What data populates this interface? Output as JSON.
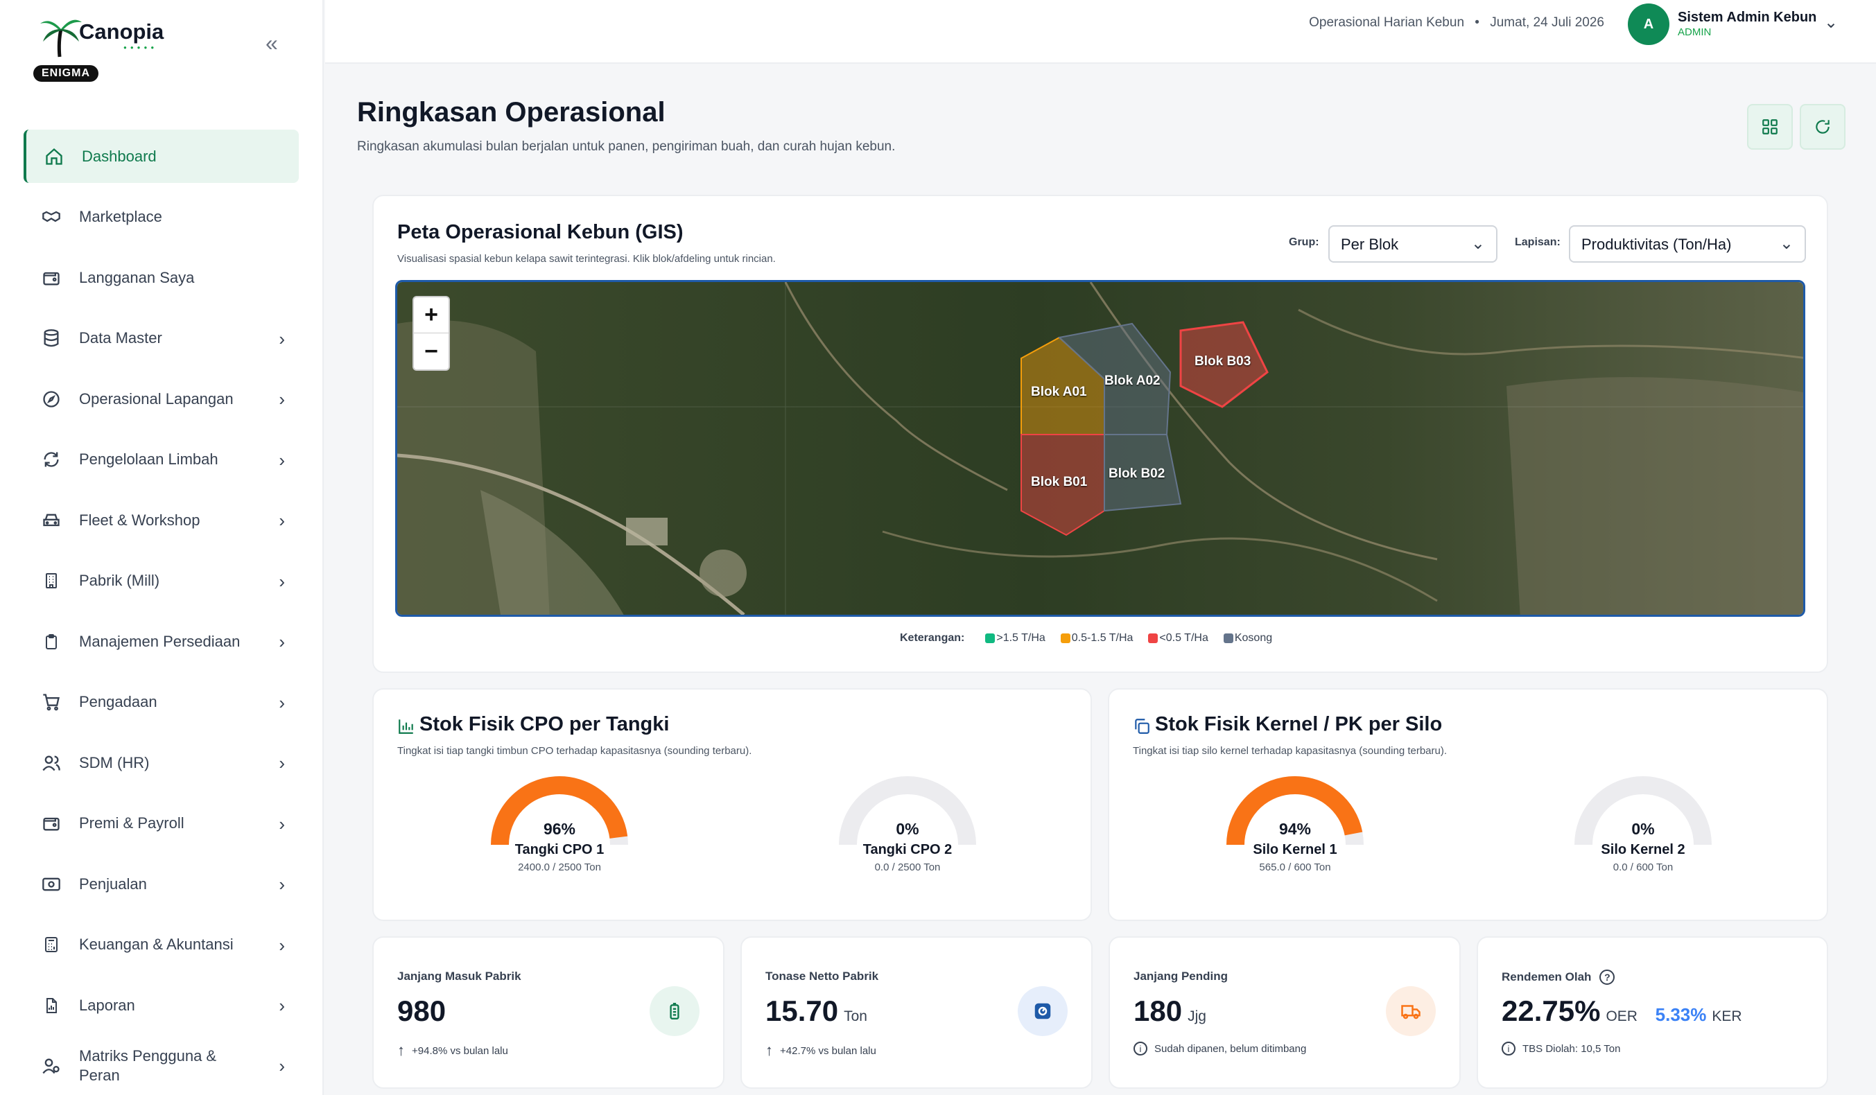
{
  "app": {
    "name": "Canopia",
    "badge": "ENIGMA"
  },
  "sidebar": {
    "items": [
      {
        "label": "Dashboard",
        "icon": "home-icon"
      },
      {
        "label": "Marketplace",
        "icon": "handshake-icon"
      },
      {
        "label": "Langganan Saya",
        "icon": "wallet-icon"
      },
      {
        "label": "Data Master",
        "icon": "database-icon"
      },
      {
        "label": "Operasional Lapangan",
        "icon": "compass-icon"
      },
      {
        "label": "Pengelolaan Limbah",
        "icon": "recycle-icon"
      },
      {
        "label": "Fleet & Workshop",
        "icon": "car-icon"
      },
      {
        "label": "Pabrik (Mill)",
        "icon": "building-icon"
      },
      {
        "label": "Manajemen Persediaan",
        "icon": "clipboard-icon"
      },
      {
        "label": "Pengadaan",
        "icon": "cart-icon"
      },
      {
        "label": "SDM (HR)",
        "icon": "users-icon"
      },
      {
        "label": "Premi & Payroll",
        "icon": "wallet-icon"
      },
      {
        "label": "Penjualan",
        "icon": "banknote-icon"
      },
      {
        "label": "Keuangan & Akuntansi",
        "icon": "calculator-icon"
      },
      {
        "label": "Laporan",
        "icon": "file-chart-icon"
      },
      {
        "label": "Matriks Pengguna & Peran",
        "icon": "user-role-icon"
      }
    ]
  },
  "topbar": {
    "context": "Operasional Harian Kebun",
    "separator": "•",
    "date": "Jumat, 24 Juli 2026",
    "avatar_initial": "A",
    "user_name": "Sistem Admin Kebun",
    "user_role": "ADMIN"
  },
  "page": {
    "title": "Ringkasan Operasional",
    "subtitle": "Ringkasan akumulasi bulan berjalan untuk panen, pengiriman buah, dan curah hujan kebun."
  },
  "gis": {
    "title": "Peta Operasional Kebun (GIS)",
    "subtitle": "Visualisasi spasial kebun kelapa sawit terintegrasi. Klik blok/afdeling untuk rincian.",
    "group_label": "Grup:",
    "group_value": "Per Blok",
    "layer_label": "Lapisan:",
    "layer_value": "Produktivitas (Ton/Ha)",
    "zoom_in": "+",
    "zoom_out": "−",
    "blocks": [
      {
        "name": "Blok A01",
        "class": "0.5-1.5 T/Ha",
        "color": "#f59e0b"
      },
      {
        "name": "Blok A02",
        "class": "Kosong",
        "color": "#64748b"
      },
      {
        "name": "Blok B03",
        "class": "<0.5 T/Ha",
        "color": "#ef4444"
      },
      {
        "name": "Blok B01",
        "class": "<0.5 T/Ha",
        "color": "#ef4444"
      },
      {
        "name": "Blok B02",
        "class": "Kosong",
        "color": "#64748b"
      }
    ],
    "legend_title": "Keterangan:",
    "legend": [
      {
        "label": ">1.5 T/Ha",
        "color": "#10b981"
      },
      {
        "label": "0.5-1.5 T/Ha",
        "color": "#f59e0b"
      },
      {
        "label": "<0.5 T/Ha",
        "color": "#ef4444"
      },
      {
        "label": "Kosong",
        "color": "#64748b"
      }
    ]
  },
  "cpo": {
    "title": "Stok Fisik CPO per Tangki",
    "subtitle": "Tingkat isi tiap tangki timbun CPO terhadap kapasitasnya (sounding terbaru).",
    "tanks": [
      {
        "name": "Tangki CPO 1",
        "pct_label": "96%",
        "fill": 0.96,
        "capacity": "2400.0 / 2500 Ton"
      },
      {
        "name": "Tangki CPO 2",
        "pct_label": "0%",
        "fill": 0,
        "capacity": "0.0 / 2500 Ton"
      }
    ]
  },
  "kernel": {
    "title": "Stok Fisik Kernel / PK per Silo",
    "subtitle": "Tingkat isi tiap silo kernel terhadap kapasitasnya (sounding terbaru).",
    "silos": [
      {
        "name": "Silo Kernel 1",
        "pct_label": "94%",
        "fill": 0.94,
        "capacity": "565.0 / 600 Ton"
      },
      {
        "name": "Silo Kernel 2",
        "pct_label": "0%",
        "fill": 0,
        "capacity": "0.0 / 600 Ton"
      }
    ]
  },
  "kpis": {
    "janjang_masuk": {
      "label": "Janjang Masuk Pabrik",
      "value": "980",
      "note": "+94.8% vs bulan lalu"
    },
    "tonase_netto": {
      "label": "Tonase Netto Pabrik",
      "value": "15.70",
      "unit": "Ton",
      "note": "+42.7% vs bulan lalu"
    },
    "janjang_pending": {
      "label": "Janjang Pending",
      "value": "180",
      "unit": "Jjg",
      "note": "Sudah dipanen, belum ditimbang"
    },
    "rendemen": {
      "label": "Rendemen Olah",
      "oer_value": "22.75%",
      "oer_label": "OER",
      "ker_value": "5.33%",
      "ker_label": "KER",
      "note": "TBS Diolah: 10,5 Ton"
    }
  },
  "colors": {
    "primary": "#0f7a4d",
    "accent_orange": "#f97316",
    "gauge_track": "#ececef"
  }
}
